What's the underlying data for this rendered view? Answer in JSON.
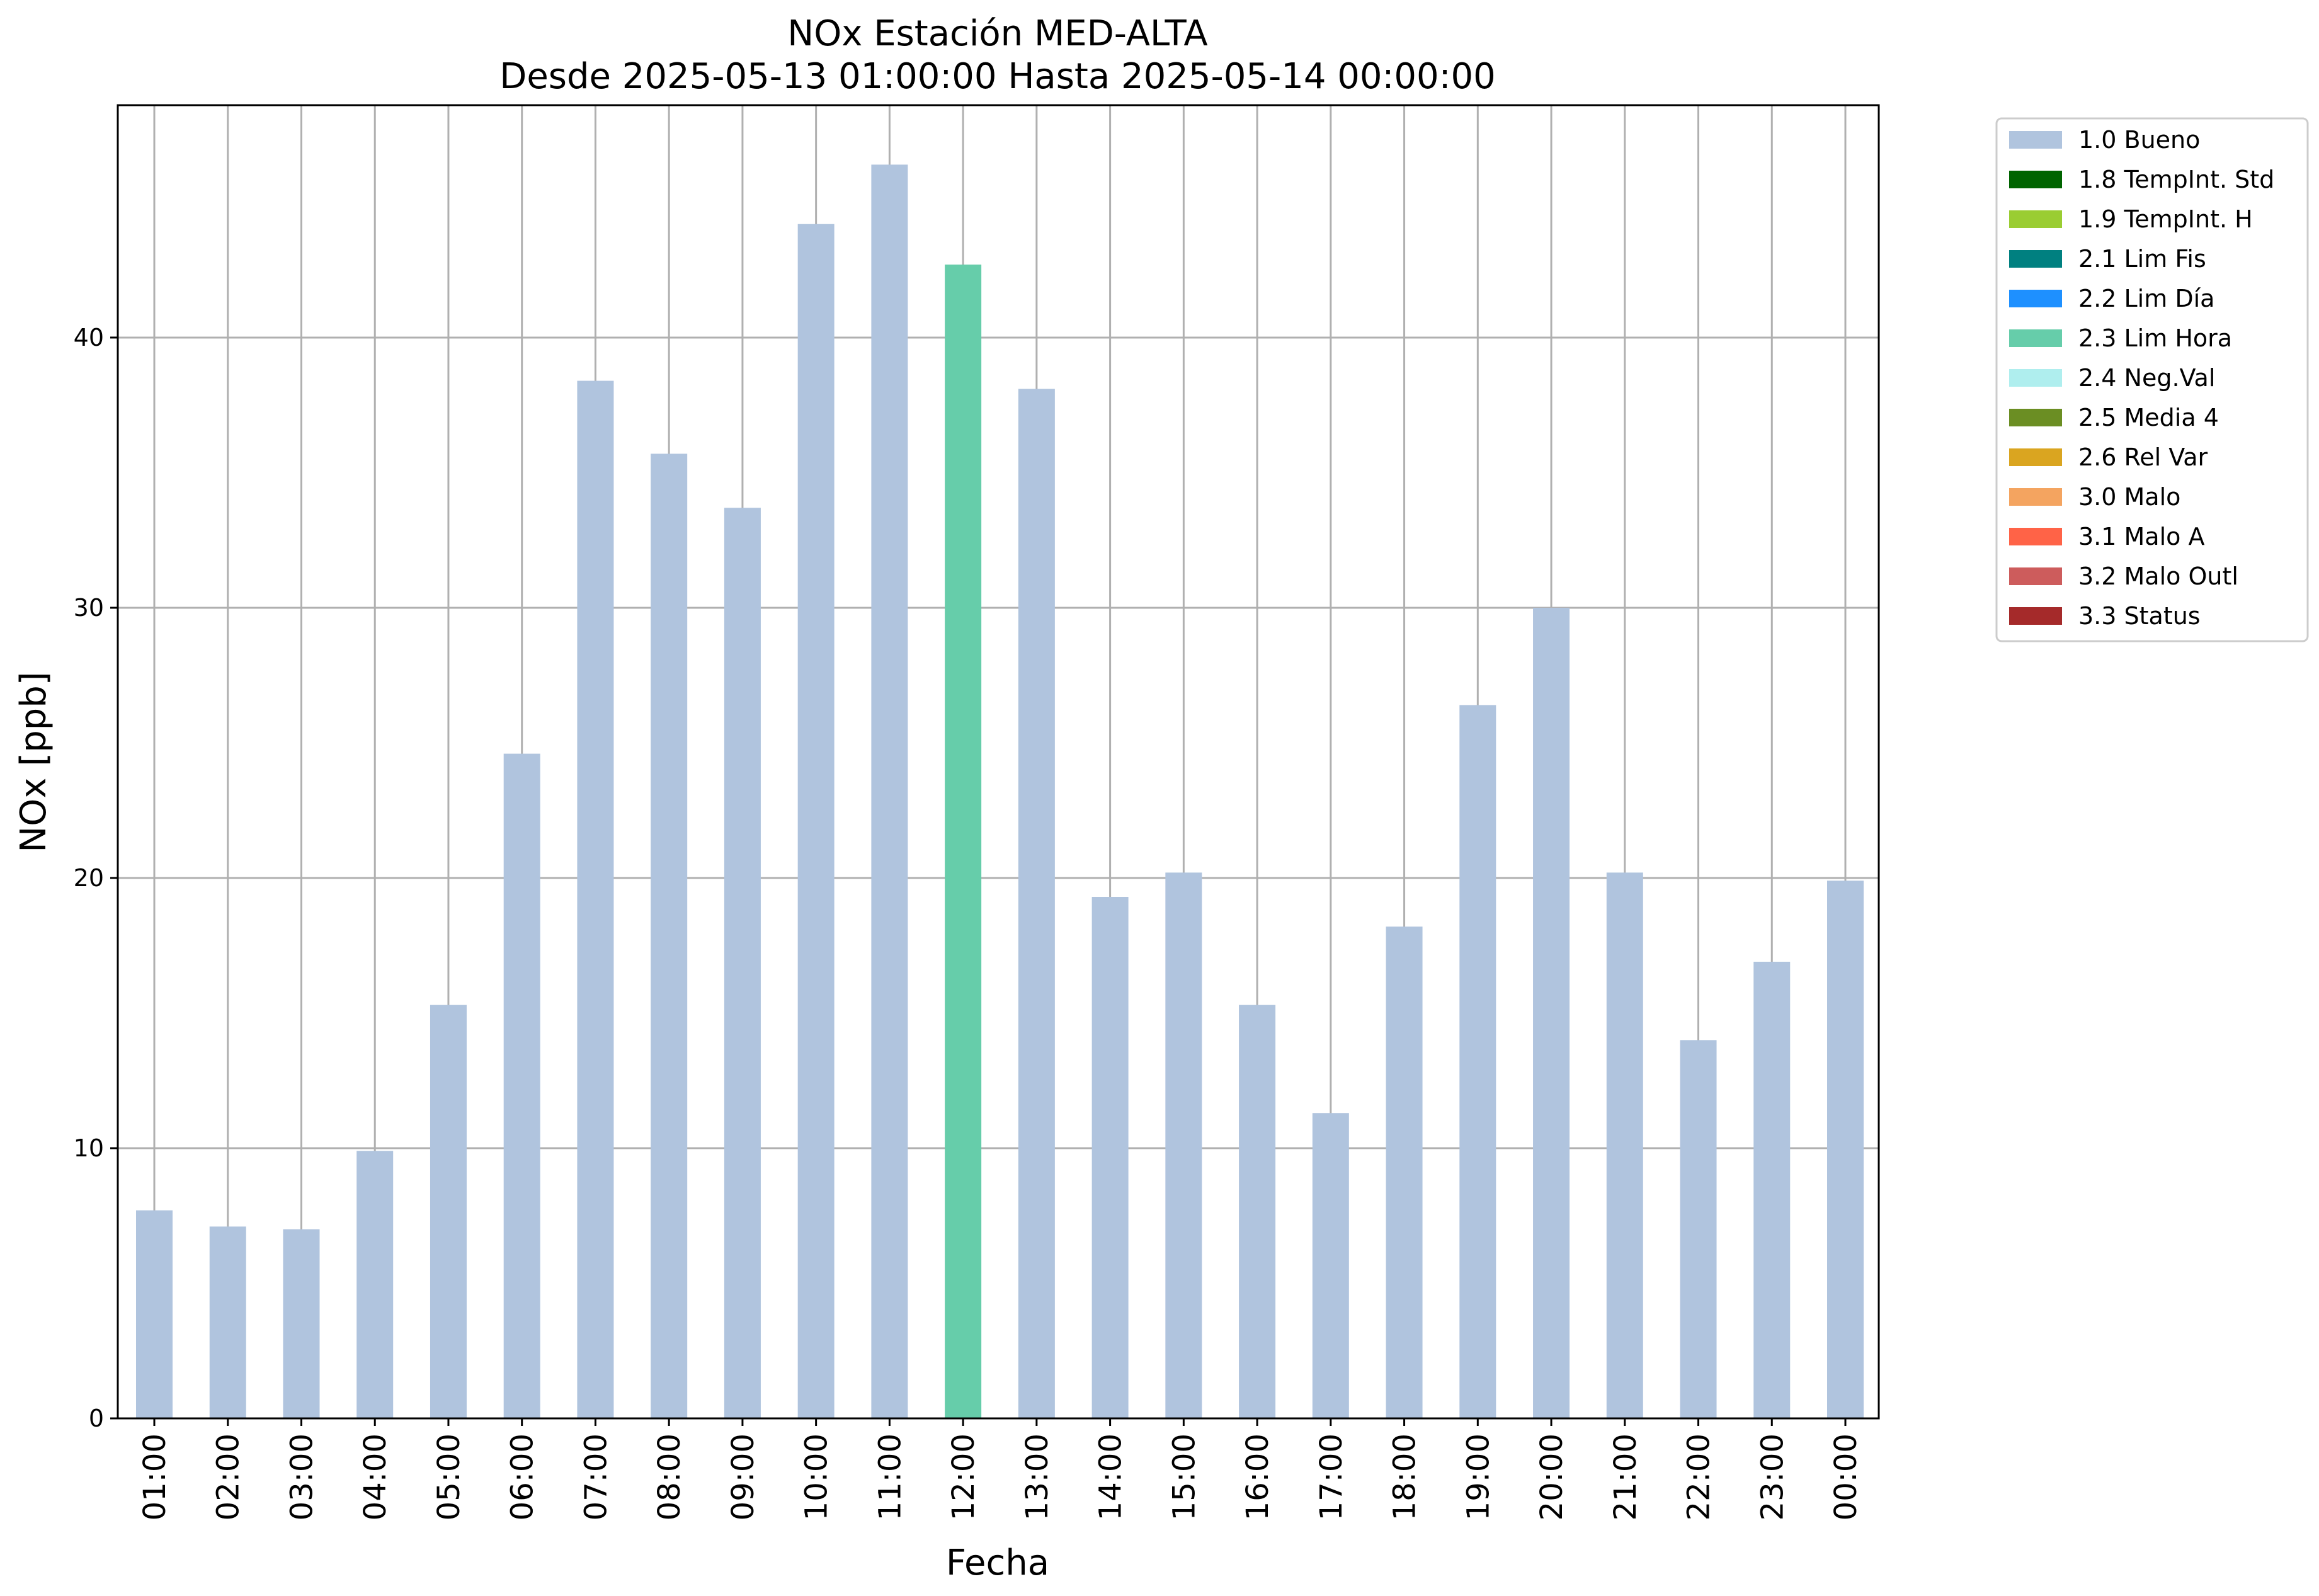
{
  "chart_data": {
    "type": "bar",
    "title": "NOx Estación MED-ALTA",
    "subtitle": "Desde 2025-05-13 01:00:00 Hasta 2025-05-14 00:00:00",
    "xlabel": "Fecha",
    "ylabel": "NOx [ppb]",
    "ylim": [
      0,
      48.6
    ],
    "yticks": [
      0,
      10,
      20,
      30,
      40
    ],
    "grid": true,
    "legend_position": "outside-top-right",
    "categories": [
      "01:00",
      "02:00",
      "03:00",
      "04:00",
      "05:00",
      "06:00",
      "07:00",
      "08:00",
      "09:00",
      "10:00",
      "11:00",
      "12:00",
      "13:00",
      "14:00",
      "15:00",
      "16:00",
      "17:00",
      "18:00",
      "19:00",
      "20:00",
      "21:00",
      "22:00",
      "23:00",
      "00:00"
    ],
    "values": [
      7.7,
      7.1,
      7.0,
      9.9,
      15.3,
      24.6,
      38.4,
      35.7,
      33.7,
      44.2,
      46.4,
      42.7,
      38.1,
      19.3,
      20.2,
      15.3,
      11.3,
      18.2,
      26.4,
      30.0,
      20.2,
      14.0,
      16.9,
      19.9
    ],
    "flags": [
      "1.0 Bueno",
      "1.0 Bueno",
      "1.0 Bueno",
      "1.0 Bueno",
      "1.0 Bueno",
      "1.0 Bueno",
      "1.0 Bueno",
      "1.0 Bueno",
      "1.0 Bueno",
      "1.0 Bueno",
      "1.0 Bueno",
      "2.3 Lim Hora",
      "1.0 Bueno",
      "1.0 Bueno",
      "1.0 Bueno",
      "1.0 Bueno",
      "1.0 Bueno",
      "1.0 Bueno",
      "1.0 Bueno",
      "1.0 Bueno",
      "1.0 Bueno",
      "1.0 Bueno",
      "1.0 Bueno",
      "1.0 Bueno"
    ],
    "legend": [
      {
        "label": "1.0 Bueno",
        "color": "#b0c4de"
      },
      {
        "label": "1.8 TempInt. Std",
        "color": "#006400"
      },
      {
        "label": "1.9 TempInt. H",
        "color": "#9acd32"
      },
      {
        "label": "2.1 Lim Fis",
        "color": "#008080"
      },
      {
        "label": "2.2 Lim Día",
        "color": "#1e90ff"
      },
      {
        "label": "2.3 Lim Hora",
        "color": "#66cdaa"
      },
      {
        "label": "2.4 Neg.Val",
        "color": "#afeeee"
      },
      {
        "label": "2.5 Media 4",
        "color": "#6b8e23"
      },
      {
        "label": "2.6 Rel Var",
        "color": "#daa520"
      },
      {
        "label": "3.0 Malo",
        "color": "#f4a460"
      },
      {
        "label": "3.1 Malo A",
        "color": "#ff6347"
      },
      {
        "label": "3.2 Malo Outl",
        "color": "#cd5c5c"
      },
      {
        "label": "3.3 Status",
        "color": "#a52a2a"
      }
    ]
  }
}
